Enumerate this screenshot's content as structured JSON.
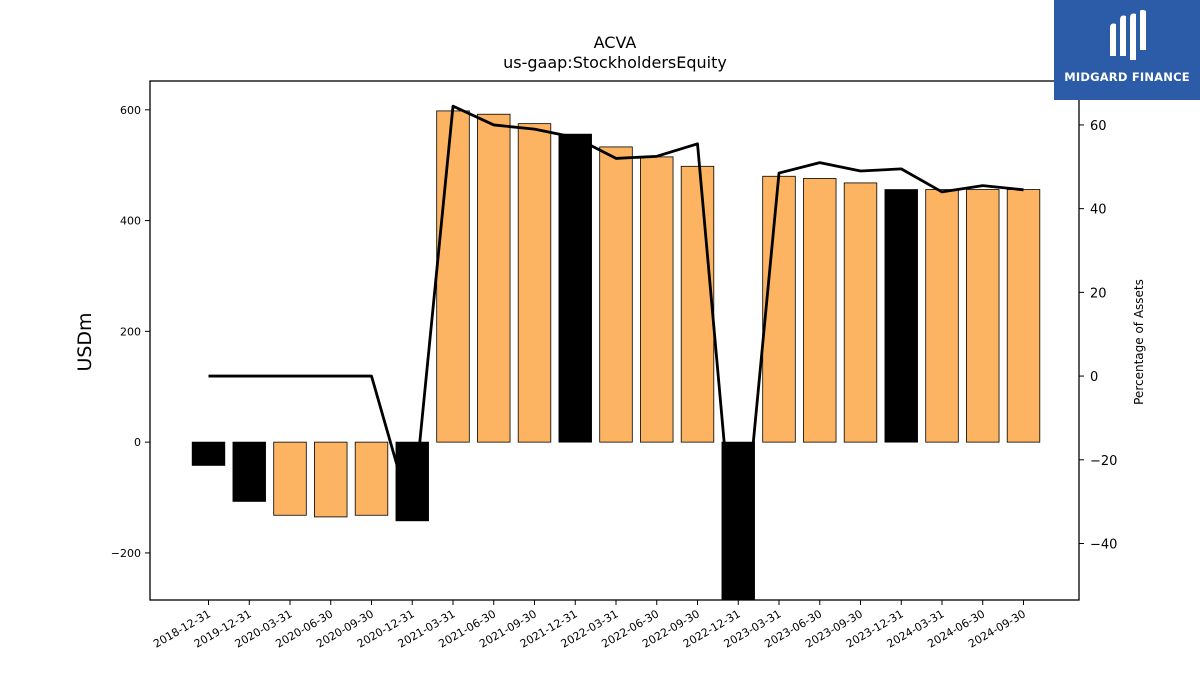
{
  "chart_data": {
    "type": "bar",
    "title": "ACVA",
    "subtitle": "us-gaap:StockholdersEquity",
    "ylabel": "USDm",
    "y2label": "Percentage of Assets",
    "ylim": [
      -285,
      652
    ],
    "y2lim": [
      -53.5,
      70.5
    ],
    "yticks": [
      -200,
      0,
      200,
      400,
      600
    ],
    "y2ticks": [
      -40,
      -20,
      0,
      20,
      40,
      60
    ],
    "categories": [
      "2018-12-31",
      "2019-12-31",
      "2020-03-31",
      "2020-06-30",
      "2020-09-30",
      "2020-12-31",
      "2021-03-31",
      "2021-06-30",
      "2021-09-30",
      "2021-12-31",
      "2022-03-31",
      "2022-06-30",
      "2022-09-30",
      "2022-12-31",
      "2023-03-31",
      "2023-06-30",
      "2023-09-30",
      "2023-12-31",
      "2024-03-31",
      "2024-06-30",
      "2024-09-30"
    ],
    "series": [
      {
        "type": "bar",
        "values": [
          -42,
          -107,
          -132,
          -135,
          -132,
          -142,
          598,
          592,
          575,
          556,
          533,
          515,
          498,
          -285,
          480,
          476,
          468,
          456,
          456,
          456,
          456
        ],
        "colors": [
          "#000000",
          "#000000",
          "#fdb462",
          "#fdb462",
          "#fdb462",
          "#000000",
          "#fdb462",
          "#fdb462",
          "#fdb462",
          "#000000",
          "#fdb462",
          "#fdb462",
          "#fdb462",
          "#000000",
          "#fdb462",
          "#fdb462",
          "#fdb462",
          "#000000",
          "#fdb462",
          "#fdb462",
          "#fdb462"
        ]
      },
      {
        "type": "line",
        "axis": "right",
        "values": [
          0,
          0,
          0,
          0,
          0,
          -34,
          64.5,
          60,
          59,
          57,
          52,
          52.5,
          55.5,
          -53.5,
          48.5,
          51,
          49,
          49.5,
          44,
          45.5,
          44.5
        ],
        "color": "#000000"
      }
    ],
    "grid": false
  },
  "logo": {
    "text": "MIDGARD FINANCE",
    "bg_color": "#2c5ba8"
  }
}
